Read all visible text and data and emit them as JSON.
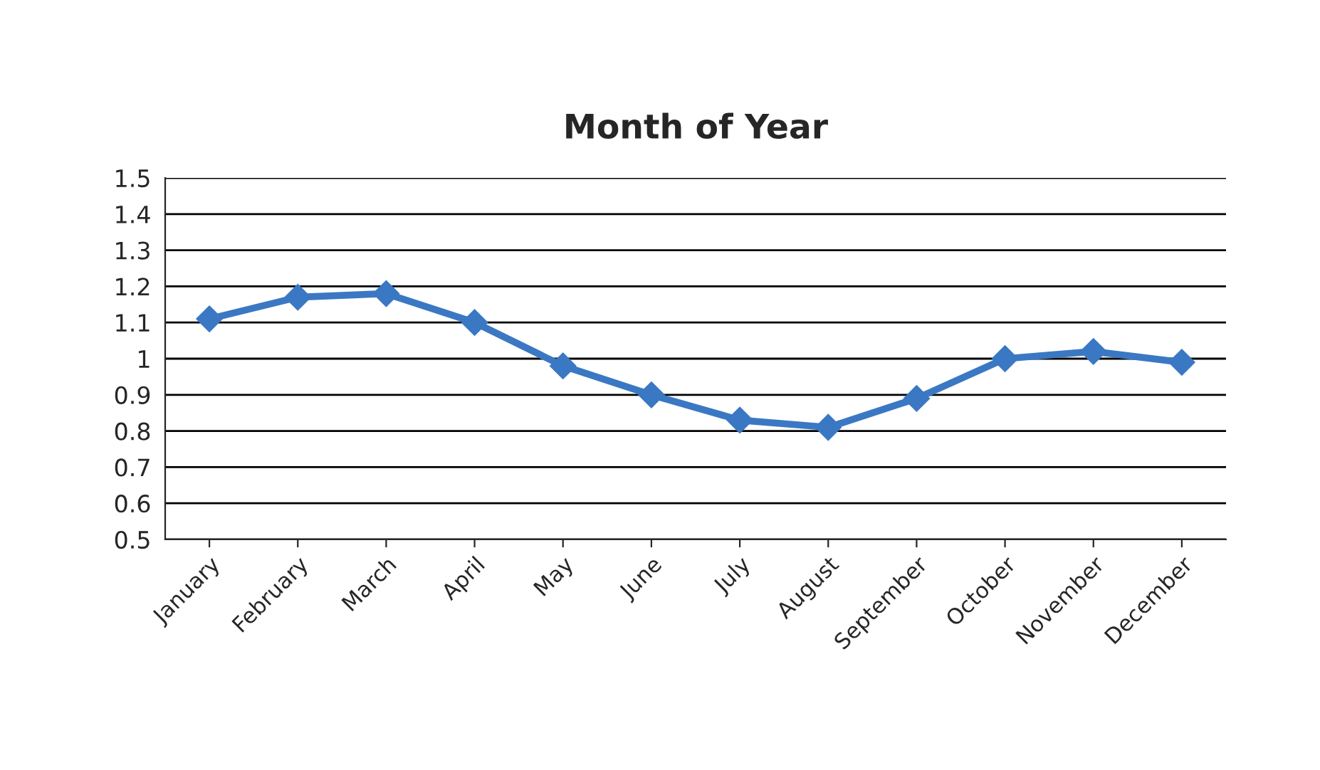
{
  "chart_data": {
    "type": "line",
    "title": "Month of Year",
    "categories": [
      "January",
      "February",
      "March",
      "April",
      "May",
      "June",
      "July",
      "August",
      "September",
      "October",
      "November",
      "December"
    ],
    "series": [
      {
        "color": "#3b78c3",
        "values": [
          1.11,
          1.17,
          1.18,
          1.1,
          0.98,
          0.9,
          0.83,
          0.81,
          0.89,
          1.0,
          1.02,
          0.99
        ]
      }
    ],
    "ylim": [
      0.5,
      1.5
    ],
    "yticks": [
      0.5,
      0.6,
      0.7,
      0.8,
      0.9,
      1,
      1.1,
      1.2,
      1.3,
      1.4,
      1.5
    ],
    "grid": "y",
    "marker": "diamond",
    "line_style": "solid",
    "legend": false
  }
}
